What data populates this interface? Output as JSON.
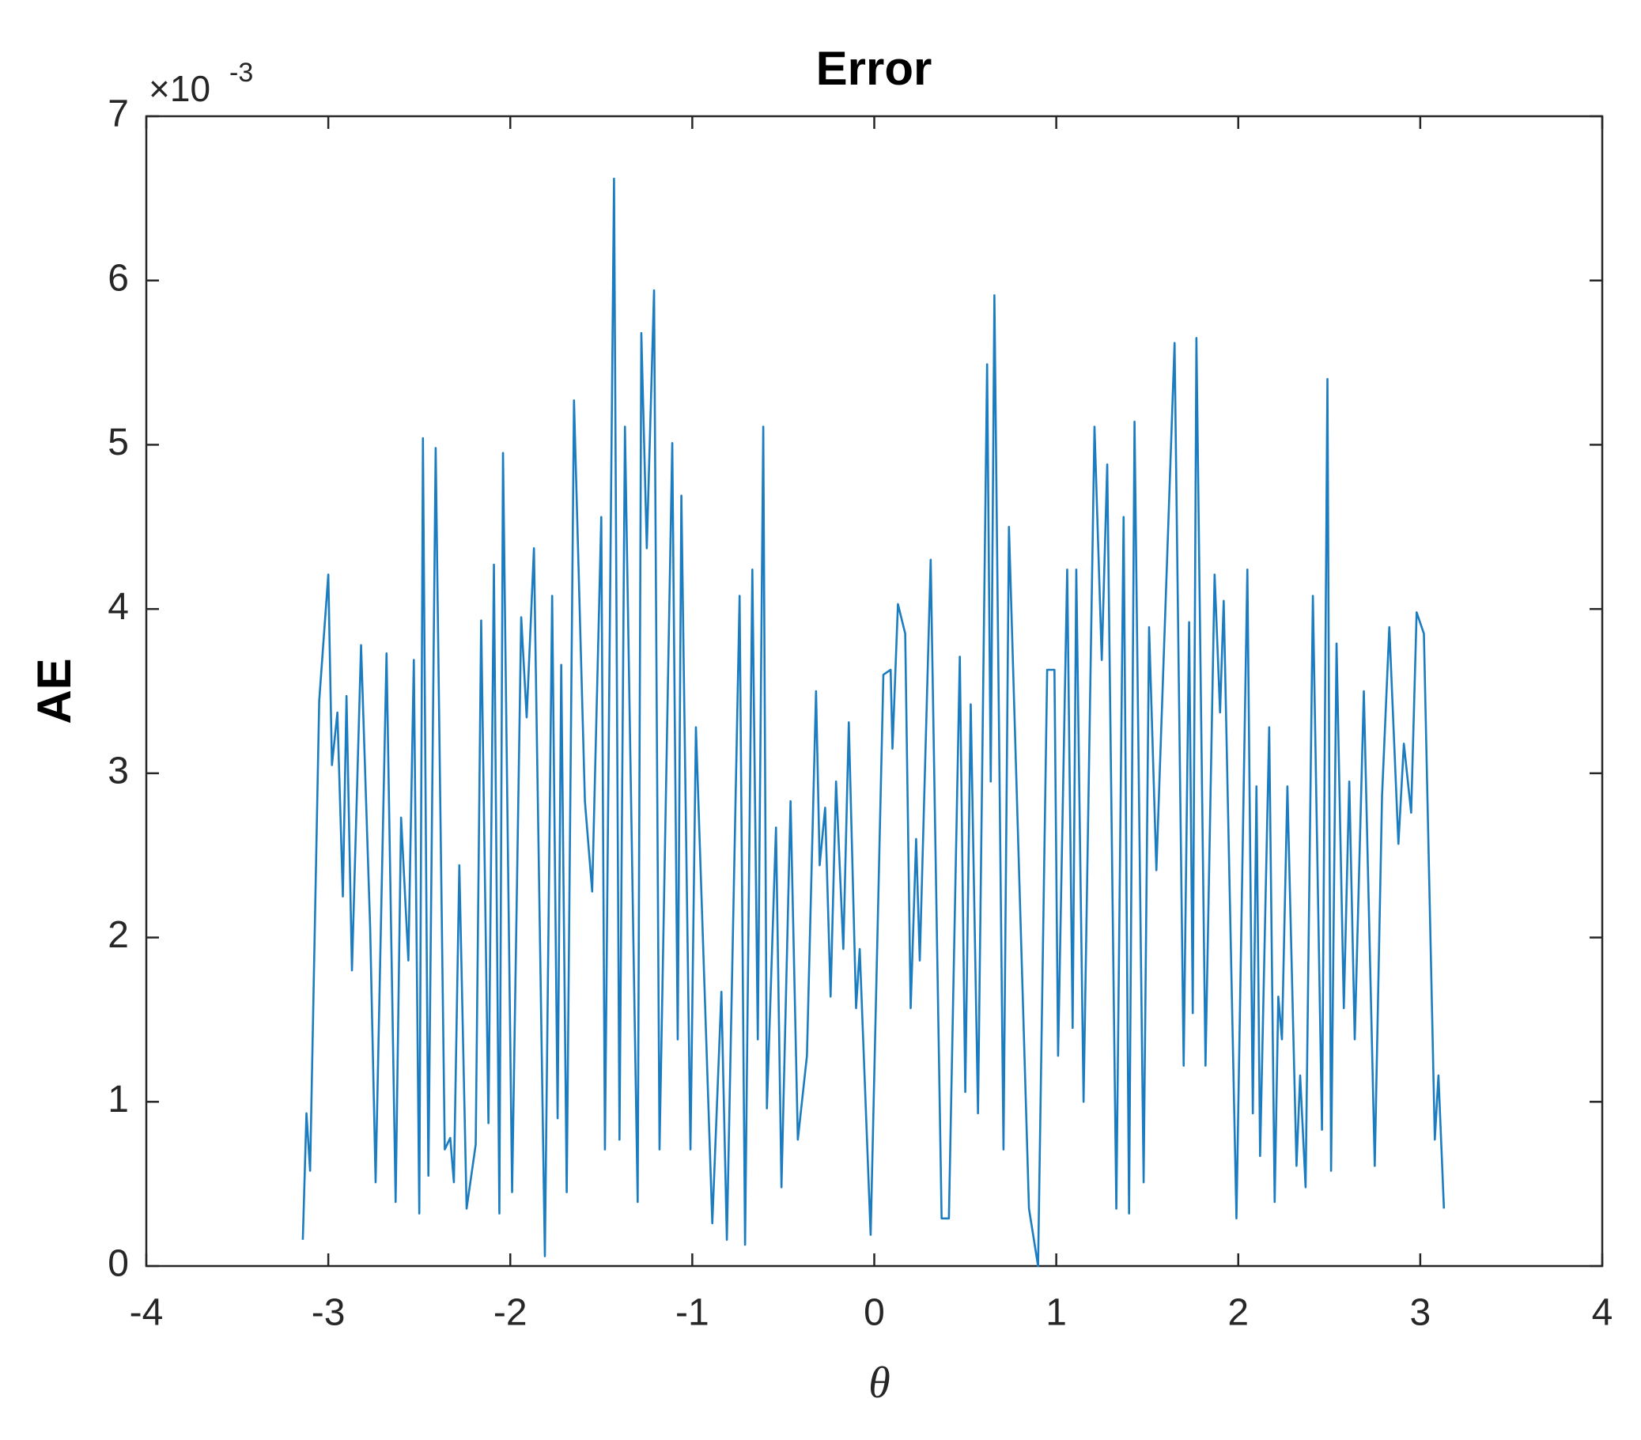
{
  "chart_data": {
    "type": "line",
    "title": "Error",
    "xlabel": "θ",
    "ylabel": "AE",
    "y_multiplier": {
      "base": "×10",
      "exponent": "-3"
    },
    "color": "#1b7cc0",
    "xlim": [
      -4,
      4
    ],
    "xticks": [
      -4,
      -3,
      -2,
      -1,
      0,
      1,
      2,
      3,
      4
    ],
    "ylim": [
      0,
      7
    ],
    "yticks": [
      0,
      1,
      2,
      3,
      4,
      5,
      6,
      7
    ],
    "x": [
      -3.14,
      -3.12,
      -3.1,
      -3.05,
      -3.0,
      -2.98,
      -2.95,
      -2.92,
      -2.9,
      -2.87,
      -2.82,
      -2.77,
      -2.74,
      -2.68,
      -2.63,
      -2.6,
      -2.56,
      -2.53,
      -2.5,
      -2.48,
      -2.45,
      -2.41,
      -2.36,
      -2.33,
      -2.31,
      -2.28,
      -2.24,
      -2.19,
      -2.16,
      -2.12,
      -2.09,
      -2.06,
      -2.04,
      -1.99,
      -1.94,
      -1.91,
      -1.87,
      -1.81,
      -1.77,
      -1.74,
      -1.72,
      -1.69,
      -1.65,
      -1.59,
      -1.55,
      -1.5,
      -1.48,
      -1.43,
      -1.4,
      -1.37,
      -1.3,
      -1.28,
      -1.25,
      -1.21,
      -1.18,
      -1.11,
      -1.08,
      -1.06,
      -1.01,
      -0.98,
      -0.89,
      -0.84,
      -0.81,
      -0.74,
      -0.71,
      -0.67,
      -0.64,
      -0.61,
      -0.59,
      -0.54,
      -0.51,
      -0.46,
      -0.42,
      -0.37,
      -0.32,
      -0.3,
      -0.27,
      -0.24,
      -0.21,
      -0.17,
      -0.14,
      -0.1,
      -0.08,
      -0.02,
      0.05,
      0.09,
      0.1,
      0.13,
      0.17,
      0.2,
      0.23,
      0.25,
      0.31,
      0.37,
      0.41,
      0.47,
      0.5,
      0.53,
      0.57,
      0.62,
      0.64,
      0.66,
      0.71,
      0.74,
      0.85,
      0.9,
      0.95,
      0.99,
      1.01,
      1.06,
      1.09,
      1.11,
      1.15,
      1.21,
      1.25,
      1.28,
      1.33,
      1.37,
      1.4,
      1.43,
      1.48,
      1.51,
      1.55,
      1.65,
      1.7,
      1.73,
      1.75,
      1.77,
      1.82,
      1.87,
      1.9,
      1.92,
      1.99,
      2.05,
      2.08,
      2.1,
      2.12,
      2.17,
      2.2,
      2.22,
      2.24,
      2.27,
      2.32,
      2.34,
      2.37,
      2.41,
      2.46,
      2.49,
      2.51,
      2.54,
      2.58,
      2.61,
      2.64,
      2.69,
      2.75,
      2.79,
      2.83,
      2.88,
      2.91,
      2.95,
      2.98,
      3.02,
      3.08,
      3.1,
      3.13
    ],
    "values": [
      0.16,
      0.93,
      0.58,
      3.44,
      4.21,
      3.05,
      3.37,
      2.25,
      3.47,
      1.8,
      3.78,
      2.06,
      0.51,
      3.73,
      0.39,
      2.73,
      1.86,
      3.69,
      0.32,
      5.04,
      0.55,
      4.98,
      0.71,
      0.78,
      0.51,
      2.44,
      0.35,
      0.74,
      3.93,
      0.87,
      4.27,
      0.32,
      4.95,
      0.45,
      3.95,
      3.34,
      4.37,
      0.06,
      4.08,
      0.9,
      3.66,
      0.45,
      5.27,
      2.83,
      2.28,
      4.56,
      0.71,
      6.62,
      0.77,
      5.11,
      0.39,
      5.68,
      4.37,
      5.94,
      0.71,
      5.01,
      1.38,
      4.69,
      0.71,
      3.28,
      0.26,
      1.67,
      0.16,
      4.08,
      0.13,
      4.24,
      1.38,
      5.11,
      0.96,
      2.67,
      0.48,
      2.83,
      0.77,
      1.28,
      3.5,
      2.44,
      2.79,
      1.64,
      2.95,
      1.93,
      3.31,
      1.57,
      1.93,
      0.19,
      3.6,
      3.63,
      3.15,
      4.03,
      3.85,
      1.57,
      2.6,
      1.86,
      4.3,
      0.29,
      0.29,
      3.71,
      1.06,
      3.42,
      0.93,
      5.49,
      2.95,
      5.91,
      0.71,
      4.5,
      0.35,
      0.0,
      3.63,
      3.63,
      1.28,
      4.24,
      1.45,
      4.24,
      1.0,
      5.11,
      3.69,
      4.88,
      0.35,
      4.56,
      0.32,
      5.14,
      0.51,
      3.89,
      2.41,
      5.62,
      1.22,
      3.92,
      1.54,
      5.65,
      1.22,
      4.21,
      3.37,
      4.05,
      0.29,
      4.24,
      0.93,
      2.92,
      0.67,
      3.28,
      0.39,
      1.64,
      1.38,
      2.92,
      0.61,
      1.16,
      0.48,
      4.08,
      0.83,
      5.4,
      0.58,
      3.79,
      1.57,
      2.95,
      1.38,
      3.5,
      0.61,
      2.86,
      3.89,
      2.57,
      3.18,
      2.76,
      3.98,
      3.85,
      0.77,
      1.16,
      0.35
    ]
  }
}
